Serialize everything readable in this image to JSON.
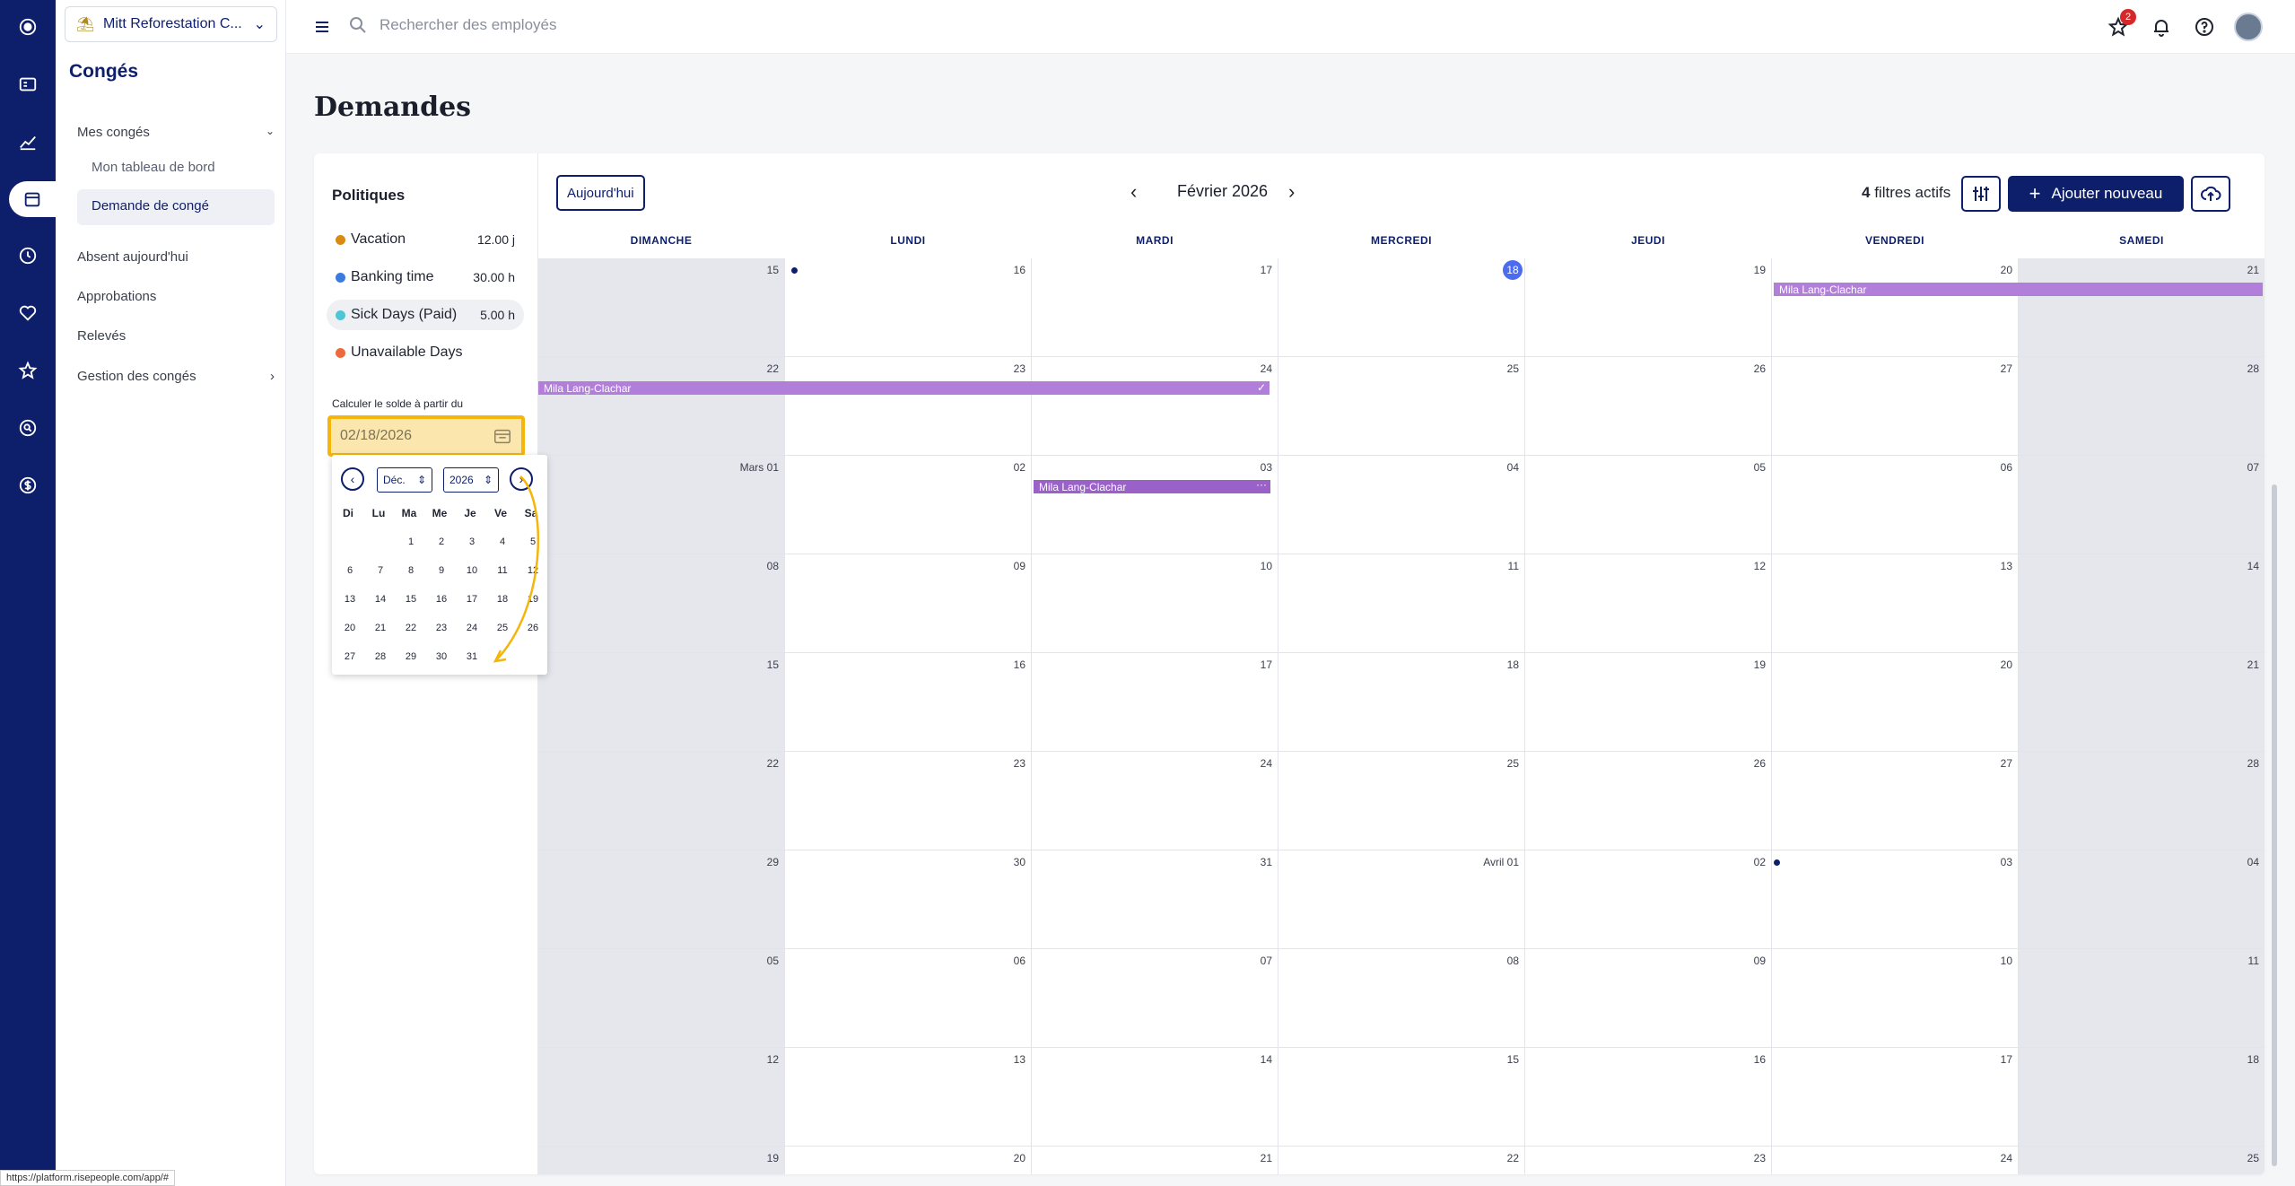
{
  "org": {
    "name": "Mitt Reforestation C..."
  },
  "sidebar": {
    "title": "Congés",
    "items": [
      {
        "label": "Mes congés"
      },
      {
        "label": "Mon tableau de bord"
      },
      {
        "label": "Demande de congé"
      },
      {
        "label": "Absent aujourd'hui"
      },
      {
        "label": "Approbations"
      },
      {
        "label": "Relevés"
      },
      {
        "label": "Gestion des congés"
      }
    ]
  },
  "topbar": {
    "search_placeholder": "Rechercher des employés",
    "notifications_badge": "2"
  },
  "page": {
    "title": "Demandes"
  },
  "policies": {
    "title": "Politiques",
    "items": [
      {
        "label": "Vacation",
        "value": "12.00 j",
        "color": "#d98a10"
      },
      {
        "label": "Banking time",
        "value": "30.00 h",
        "color": "#3b7be0"
      },
      {
        "label": "Sick Days (Paid)",
        "value": "5.00 h",
        "color": "#4fc6d6"
      },
      {
        "label": "Unavailable Days",
        "value": "",
        "color": "#ee6a3a"
      }
    ],
    "calc_label": "Calculer le solde à partir du",
    "date_value": "02/18/2026"
  },
  "datepicker": {
    "month": "Déc.",
    "year": "2026",
    "weekdays": [
      "Di",
      "Lu",
      "Ma",
      "Me",
      "Je",
      "Ve",
      "Sa"
    ],
    "weeks": [
      [
        "",
        "",
        "1",
        "2",
        "3",
        "4",
        "5"
      ],
      [
        "6",
        "7",
        "8",
        "9",
        "10",
        "11",
        "12"
      ],
      [
        "13",
        "14",
        "15",
        "16",
        "17",
        "18",
        "19"
      ],
      [
        "20",
        "21",
        "22",
        "23",
        "24",
        "25",
        "26"
      ],
      [
        "27",
        "28",
        "29",
        "30",
        "31",
        "",
        ""
      ]
    ]
  },
  "calendar": {
    "today_button": "Aujourd'hui",
    "month_label": "Février 2026",
    "filters_count": "4",
    "filters_label": "filtres actifs",
    "add_button": "Ajouter nouveau",
    "weekdays": [
      "DIMANCHE",
      "LUNDI",
      "MARDI",
      "MERCREDI",
      "JEUDI",
      "VENDREDI",
      "SAMEDI"
    ],
    "weeks": [
      [
        "15",
        "16",
        "17",
        "18",
        "19",
        "20",
        "21"
      ],
      [
        "22",
        "23",
        "24",
        "25",
        "26",
        "27",
        "28"
      ],
      [
        "Mars 01",
        "02",
        "03",
        "04",
        "05",
        "06",
        "07"
      ],
      [
        "08",
        "09",
        "10",
        "11",
        "12",
        "13",
        "14"
      ],
      [
        "15",
        "16",
        "17",
        "18",
        "19",
        "20",
        "21"
      ],
      [
        "22",
        "23",
        "24",
        "25",
        "26",
        "27",
        "28"
      ],
      [
        "29",
        "30",
        "31",
        "Avril 01",
        "02",
        "03",
        "04"
      ],
      [
        "05",
        "06",
        "07",
        "08",
        "09",
        "10",
        "11"
      ],
      [
        "12",
        "13",
        "14",
        "15",
        "16",
        "17",
        "18"
      ],
      [
        "19",
        "20",
        "21",
        "22",
        "23",
        "24",
        "25"
      ]
    ],
    "events": [
      {
        "label": "Mila Lang-Clachar"
      },
      {
        "label": "Mila Lang-Clachar"
      },
      {
        "label": "Mila Lang-Clachar"
      }
    ]
  },
  "status_url": "https://platform.risepeople.com/app/#"
}
